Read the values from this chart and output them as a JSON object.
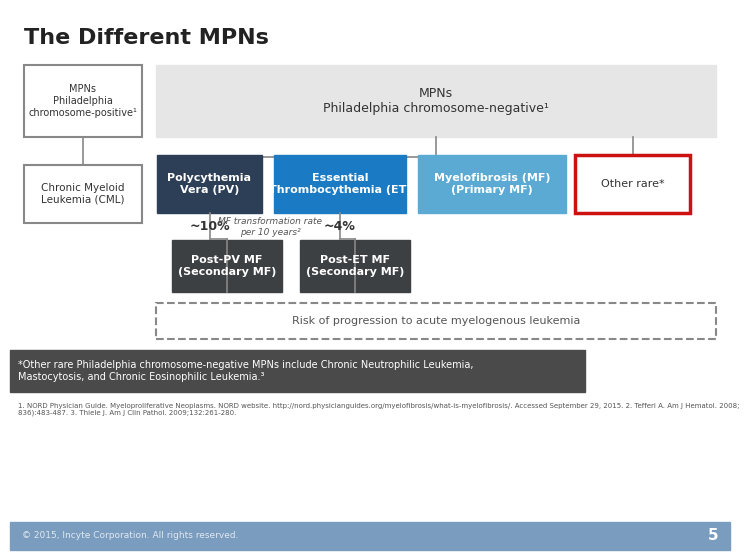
{
  "title": "The Different MPNs",
  "bg_color": "#ffffff",
  "footer_bg": "#7a9cbf",
  "footer_text": "© 2015, Incyte Corporation. All rights reserved.",
  "page_num": "5",
  "ph_pos_label": "MPNs\nPhiladelphia\nchromosome-positive¹",
  "ph_neg_label": "MPNs\nPhiladelphia chromosome-negative¹",
  "ph_neg_bg": "#e6e6e6",
  "cml_label": "Chronic Myeloid\nLeukemia (CML)",
  "pv_label": "Polycythemia\nVera (PV)",
  "pv_bg": "#2d3f56",
  "et_label": "Essential\nThrombocythemia (ET)",
  "et_bg": "#1a7bc4",
  "mf_label": "Myelofibrosis (MF)\n(Primary MF)",
  "mf_bg": "#5aaad4",
  "other_label": "Other rare*",
  "other_border": "#cc1111",
  "post_pv_label": "Post-PV MF\n(Secondary MF)",
  "post_pv_bg": "#3d4043",
  "post_et_label": "Post-ET MF\n(Secondary MF)",
  "post_et_bg": "#3d4043",
  "pv_rate": "~10%",
  "et_rate": "~4%",
  "mf_transform_label": "MF transformation rate\nper 10 years²",
  "risk_label": "Risk of progression to acute myelogenous leukemia",
  "footnote_bg": "#4a4a4a",
  "footnote_text": "*Other rare Philadelphia chromosome-negative MPNs include Chronic Neutrophilic Leukemia,\nMastocytosis, and Chronic Eosinophilic Leukemia.³",
  "ref_text": "1. NORD Physician Guide. Myeloproliferative Neoplasms. NORD website. http://nord.physicianguides.org/myelofibrosis/what-is-myelofibrosis/. Accessed September 29, 2015. 2. Tefferi A. Am J Hematol. 2008;\n836):483-487. 3. Thiele J. Am J Clin Pathol. 2009;132:261-280.",
  "line_color": "#888888",
  "border_color": "#888888",
  "text_dark": "#333333",
  "text_white": "#ffffff",
  "text_gray": "#555555"
}
